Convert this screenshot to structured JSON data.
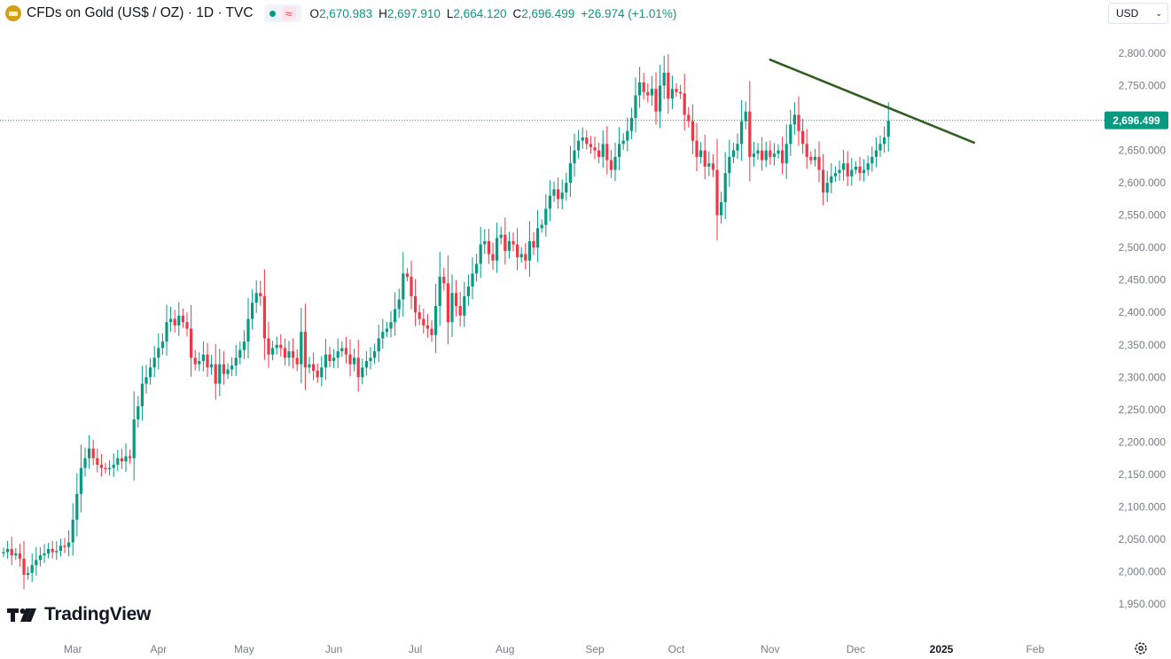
{
  "legend": {
    "symbol": "CFDs on Gold (US$ / OZ) · 1D · TVC",
    "open_label": "O",
    "open": "2,670.983",
    "high_label": "H",
    "high": "2,697.910",
    "low_label": "L",
    "low": "2,664.120",
    "close_label": "C",
    "close": "2,696.499",
    "change": "+26.974 (+1.01%)"
  },
  "currency": {
    "value": "USD"
  },
  "branding": {
    "name": "TradingView"
  },
  "colors": {
    "up": "#089981",
    "down": "#f23645",
    "trendline": "#2f5f1e",
    "price_label": "#089981",
    "axis_text": "#787b86",
    "bg": "#ffffff"
  },
  "icons": [
    "gold-bar-icon",
    "market-status-icon",
    "delay-icon",
    "chevron-down-icon",
    "tradingview-logo-icon",
    "settings-gear-icon"
  ],
  "chart_data": {
    "type": "candlestick",
    "y_range": [
      1930,
      2830
    ],
    "y_ticks": [
      {
        "v": 1950,
        "label": "1,950.000"
      },
      {
        "v": 2000,
        "label": "2,000.000"
      },
      {
        "v": 2050,
        "label": "2,050.000"
      },
      {
        "v": 2100,
        "label": "2,100.000"
      },
      {
        "v": 2150,
        "label": "2,150.000"
      },
      {
        "v": 2200,
        "label": "2,200.000"
      },
      {
        "v": 2250,
        "label": "2,250.000"
      },
      {
        "v": 2300,
        "label": "2,300.000"
      },
      {
        "v": 2350,
        "label": "2,350.000"
      },
      {
        "v": 2400,
        "label": "2,400.000"
      },
      {
        "v": 2450,
        "label": "2,450.000"
      },
      {
        "v": 2500,
        "label": "2,500.000"
      },
      {
        "v": 2550,
        "label": "2,550.000"
      },
      {
        "v": 2600,
        "label": "2,600.000"
      },
      {
        "v": 2650,
        "label": "2,650.000"
      },
      {
        "v": 2700,
        "label": "2,700.000"
      },
      {
        "v": 2750,
        "label": "2,750.000"
      },
      {
        "v": 2800,
        "label": "2,800.000"
      }
    ],
    "x_ticks": [
      {
        "label": "Mar",
        "bar": 17,
        "bold": false
      },
      {
        "label": "Apr",
        "bar": 38,
        "bold": false
      },
      {
        "label": "May",
        "bar": 59,
        "bold": false
      },
      {
        "label": "Jun",
        "bar": 81,
        "bold": false
      },
      {
        "label": "Jul",
        "bar": 101,
        "bold": false
      },
      {
        "label": "Aug",
        "bar": 123,
        "bold": false
      },
      {
        "label": "Sep",
        "bar": 145,
        "bold": false
      },
      {
        "label": "Oct",
        "bar": 165,
        "bold": false
      },
      {
        "label": "Nov",
        "bar": 188,
        "bold": false
      },
      {
        "label": "Dec",
        "bar": 209,
        "bold": false
      },
      {
        "label": "2025",
        "bar": 230,
        "bold": true
      },
      {
        "label": "Feb",
        "bar": 253,
        "bold": false
      }
    ],
    "last_price": {
      "value": 2696.499,
      "label": "2,696.499"
    },
    "trendline": {
      "from": {
        "bar": 188,
        "y": 2790
      },
      "to": {
        "bar": 238,
        "y": 2662
      }
    },
    "closes": [
      2030,
      2035,
      2025,
      2028,
      2020,
      1995,
      1998,
      2010,
      2018,
      2025,
      2028,
      2035,
      2030,
      2032,
      2040,
      2038,
      2045,
      2080,
      2120,
      2160,
      2175,
      2190,
      2175,
      2165,
      2160,
      2158,
      2160,
      2165,
      2175,
      2170,
      2178,
      2175,
      2235,
      2255,
      2290,
      2300,
      2315,
      2330,
      2345,
      2355,
      2385,
      2390,
      2380,
      2395,
      2385,
      2375,
      2330,
      2320,
      2325,
      2335,
      2315,
      2320,
      2290,
      2320,
      2305,
      2312,
      2318,
      2330,
      2342,
      2355,
      2390,
      2415,
      2430,
      2425,
      2360,
      2335,
      2345,
      2350,
      2345,
      2330,
      2340,
      2330,
      2320,
      2370,
      2315,
      2320,
      2310,
      2300,
      2315,
      2335,
      2325,
      2330,
      2340,
      2345,
      2335,
      2320,
      2330,
      2300,
      2315,
      2325,
      2330,
      2340,
      2360,
      2370,
      2375,
      2385,
      2405,
      2420,
      2460,
      2455,
      2425,
      2400,
      2390,
      2380,
      2375,
      2365,
      2410,
      2455,
      2445,
      2385,
      2430,
      2410,
      2395,
      2425,
      2440,
      2460,
      2475,
      2505,
      2510,
      2490,
      2480,
      2515,
      2520,
      2495,
      2510,
      2505,
      2485,
      2490,
      2480,
      2510,
      2500,
      2530,
      2535,
      2560,
      2580,
      2590,
      2575,
      2585,
      2600,
      2630,
      2650,
      2665,
      2670,
      2660,
      2655,
      2650,
      2640,
      2660,
      2635,
      2620,
      2640,
      2660,
      2665,
      2680,
      2700,
      2735,
      2755,
      2740,
      2735,
      2745,
      2710,
      2750,
      2770,
      2730,
      2745,
      2740,
      2738,
      2705,
      2695,
      2665,
      2640,
      2650,
      2625,
      2630,
      2620,
      2550,
      2570,
      2615,
      2640,
      2650,
      2660,
      2695,
      2710,
      2640,
      2645,
      2650,
      2635,
      2650,
      2640,
      2645,
      2650,
      2630,
      2660,
      2690,
      2705,
      2680,
      2660,
      2640,
      2635,
      2640,
      2620,
      2585,
      2600,
      2610,
      2615,
      2620,
      2630,
      2610,
      2620,
      2625,
      2615,
      2620,
      2630,
      2640,
      2650,
      2660,
      2670,
      2696
    ],
    "opens": [
      2028,
      2030,
      2035,
      2025,
      2028,
      2020,
      1995,
      1998,
      2010,
      2018,
      2025,
      2028,
      2035,
      2030,
      2032,
      2040,
      2038,
      2045,
      2080,
      2120,
      2160,
      2175,
      2190,
      2175,
      2165,
      2160,
      2158,
      2160,
      2165,
      2175,
      2170,
      2178,
      2175,
      2235,
      2255,
      2290,
      2300,
      2315,
      2330,
      2345,
      2355,
      2385,
      2390,
      2380,
      2395,
      2385,
      2375,
      2330,
      2320,
      2325,
      2335,
      2315,
      2320,
      2290,
      2320,
      2305,
      2312,
      2318,
      2330,
      2342,
      2355,
      2390,
      2415,
      2430,
      2425,
      2360,
      2335,
      2345,
      2350,
      2345,
      2330,
      2340,
      2330,
      2320,
      2370,
      2315,
      2320,
      2310,
      2300,
      2315,
      2335,
      2325,
      2330,
      2340,
      2345,
      2335,
      2320,
      2330,
      2300,
      2315,
      2325,
      2330,
      2340,
      2360,
      2370,
      2375,
      2385,
      2405,
      2420,
      2460,
      2455,
      2425,
      2400,
      2390,
      2380,
      2375,
      2365,
      2410,
      2455,
      2445,
      2385,
      2430,
      2410,
      2395,
      2425,
      2440,
      2460,
      2475,
      2505,
      2510,
      2490,
      2480,
      2515,
      2520,
      2495,
      2510,
      2505,
      2485,
      2490,
      2480,
      2510,
      2500,
      2530,
      2535,
      2560,
      2580,
      2590,
      2575,
      2585,
      2600,
      2630,
      2650,
      2665,
      2670,
      2660,
      2655,
      2650,
      2640,
      2660,
      2635,
      2620,
      2640,
      2660,
      2665,
      2680,
      2700,
      2735,
      2755,
      2740,
      2735,
      2745,
      2710,
      2750,
      2770,
      2730,
      2745,
      2740,
      2738,
      2705,
      2695,
      2665,
      2640,
      2650,
      2625,
      2630,
      2620,
      2550,
      2570,
      2615,
      2640,
      2650,
      2660,
      2695,
      2710,
      2640,
      2645,
      2650,
      2635,
      2650,
      2640,
      2645,
      2650,
      2630,
      2660,
      2690,
      2705,
      2680,
      2660,
      2640,
      2635,
      2640,
      2620,
      2585,
      2600,
      2610,
      2615,
      2620,
      2630,
      2610,
      2620,
      2625,
      2615,
      2620,
      2630,
      2640,
      2650,
      2660,
      2671
    ]
  }
}
